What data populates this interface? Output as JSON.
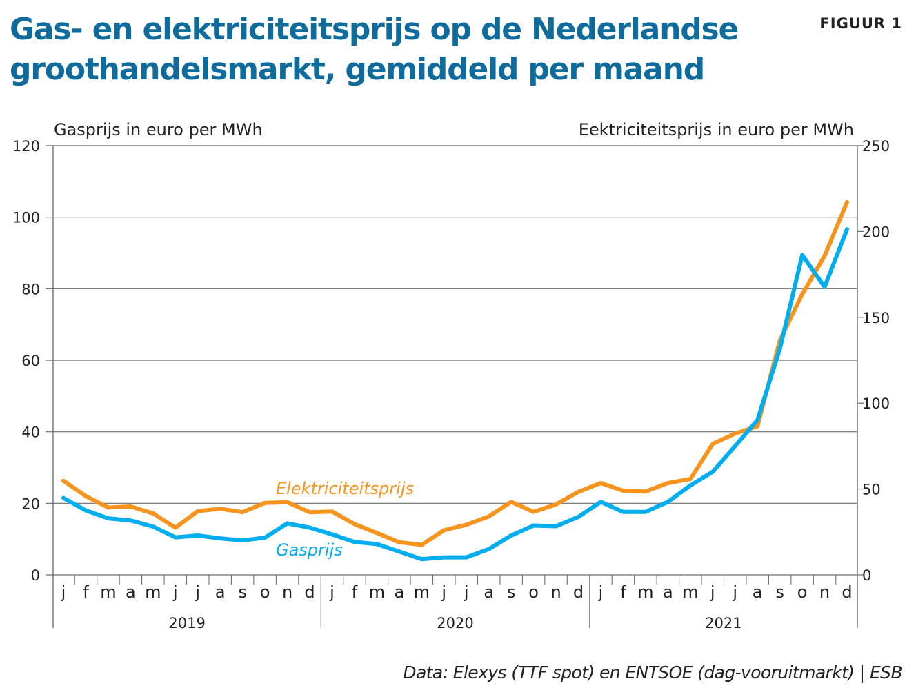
{
  "header": {
    "title": "Gas- en elektriciteitsprijs op de Nederlandse groothandelsmarkt, gemiddeld per maand",
    "figure_label": "FIGUUR 1"
  },
  "footer": {
    "source": "Data: Elexys (TTF spot) en ENTSOE (dag-vooruitmarkt) | ESB"
  },
  "colors": {
    "title": "#0e6b9b",
    "gas": "#00aeef",
    "electricity": "#f7941d",
    "grid": "#6d6e71",
    "text": "#231f20"
  },
  "chart_data": {
    "type": "line",
    "title": "Gas- en elektriciteitsprijs op de Nederlandse groothandelsmarkt, gemiddeld per maand",
    "ylabel_left": "Gasprijs in euro per MWh",
    "ylabel_right": "Eektriciteitsprijs in euro per MWh",
    "ylim_left": [
      0,
      120
    ],
    "yticks_left": [
      "0",
      "20",
      "40",
      "60",
      "80",
      "100",
      "120"
    ],
    "ylim_right": [
      0,
      250
    ],
    "yticks_right": [
      "0",
      "50",
      "100",
      "150",
      "200",
      "250"
    ],
    "grid": true,
    "years": [
      "2019",
      "2020",
      "2021"
    ],
    "month_labels": [
      "j",
      "f",
      "m",
      "a",
      "m",
      "j",
      "j",
      "a",
      "s",
      "o",
      "n",
      "d"
    ],
    "x": [
      "2019-01",
      "2019-02",
      "2019-03",
      "2019-04",
      "2019-05",
      "2019-06",
      "2019-07",
      "2019-08",
      "2019-09",
      "2019-10",
      "2019-11",
      "2019-12",
      "2020-01",
      "2020-02",
      "2020-03",
      "2020-04",
      "2020-05",
      "2020-06",
      "2020-07",
      "2020-08",
      "2020-09",
      "2020-10",
      "2020-11",
      "2020-12",
      "2021-01",
      "2021-02",
      "2021-03",
      "2021-04",
      "2021-05",
      "2021-06",
      "2021-07",
      "2021-08",
      "2021-09",
      "2021-10",
      "2021-11",
      "2021-12"
    ],
    "series": [
      {
        "name": "Gasprijs",
        "label": "Gasprijs",
        "axis": "left",
        "color": "#00aeef",
        "values": [
          21.5,
          18.0,
          15.8,
          15.2,
          13.5,
          10.5,
          11.0,
          10.2,
          9.6,
          10.4,
          14.4,
          13.2,
          11.3,
          9.2,
          8.6,
          6.5,
          4.4,
          4.9,
          4.9,
          7.2,
          11.0,
          13.8,
          13.6,
          16.2,
          20.4,
          17.6,
          17.6,
          20.4,
          25.0,
          28.8,
          36.0,
          43.3,
          63.2,
          89.4,
          80.5,
          96.6
        ]
      },
      {
        "name": "Elektriciteitsprijs",
        "label": "Elektriciteitsprijs",
        "axis": "right",
        "color": "#f7941d",
        "values": [
          54.8,
          45.8,
          39.2,
          39.8,
          35.8,
          27.5,
          37.1,
          38.5,
          36.5,
          41.9,
          42.3,
          36.5,
          36.9,
          29.6,
          24.4,
          19.0,
          17.5,
          26.0,
          29.2,
          34.0,
          42.5,
          36.7,
          41.0,
          48.3,
          53.5,
          49.0,
          48.5,
          53.5,
          55.8,
          76.3,
          82.3,
          86.5,
          136.5,
          163.5,
          185.8,
          217.1
        ]
      }
    ],
    "annotations": [
      "Elektriciteitsprijs",
      "Gasprijs"
    ]
  }
}
